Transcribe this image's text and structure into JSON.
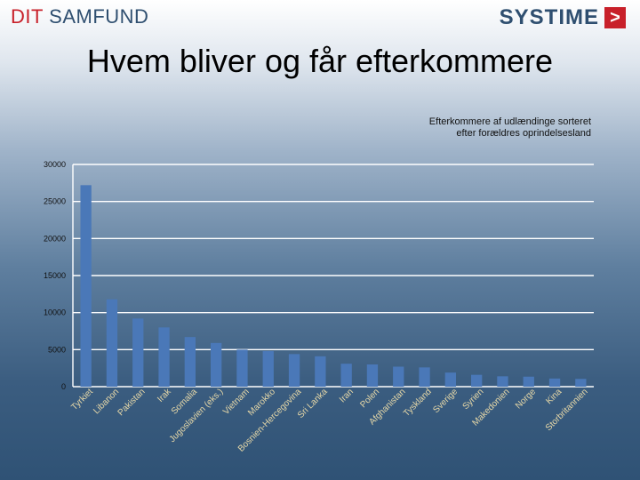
{
  "header": {
    "brand_left_part1": "DIT",
    "brand_left_part2": "SAMFUND",
    "brand_right": "SYSTIME",
    "brand_right_symbol": ">"
  },
  "slide": {
    "title": "Hvem bliver og får efterkommere"
  },
  "colors": {
    "bar": "#4a78b8",
    "accent": "#c8202a",
    "brand": "#2f4f70"
  },
  "chart_data": {
    "type": "bar",
    "title_line1": "Efterkommere af udlændinge  sorteret",
    "title_line2": "efter forældres oprindelsesland",
    "xlabel": "",
    "ylabel": "",
    "ylim": [
      0,
      30000
    ],
    "yticks": [
      0,
      5000,
      10000,
      15000,
      20000,
      25000,
      30000
    ],
    "grid": true,
    "categories": [
      "Tyrkiet",
      "Libanon",
      "Pakistan",
      "Irak",
      "Somalia",
      "Jugoslavien (eks.)",
      "Vietnam",
      "Marokko",
      "Bosnien-Hercegovina",
      "Sri Lanka",
      "Iran",
      "Polen",
      "Afghanistan",
      "Tyskland",
      "Sverige",
      "Syrien",
      "Makedonien",
      "Norge",
      "Kina",
      "Storbritannien"
    ],
    "values": [
      27200,
      11800,
      9200,
      8000,
      6700,
      5900,
      5000,
      4800,
      4400,
      4100,
      3100,
      3000,
      2700,
      2600,
      1900,
      1600,
      1400,
      1350,
      1100,
      1050
    ]
  }
}
